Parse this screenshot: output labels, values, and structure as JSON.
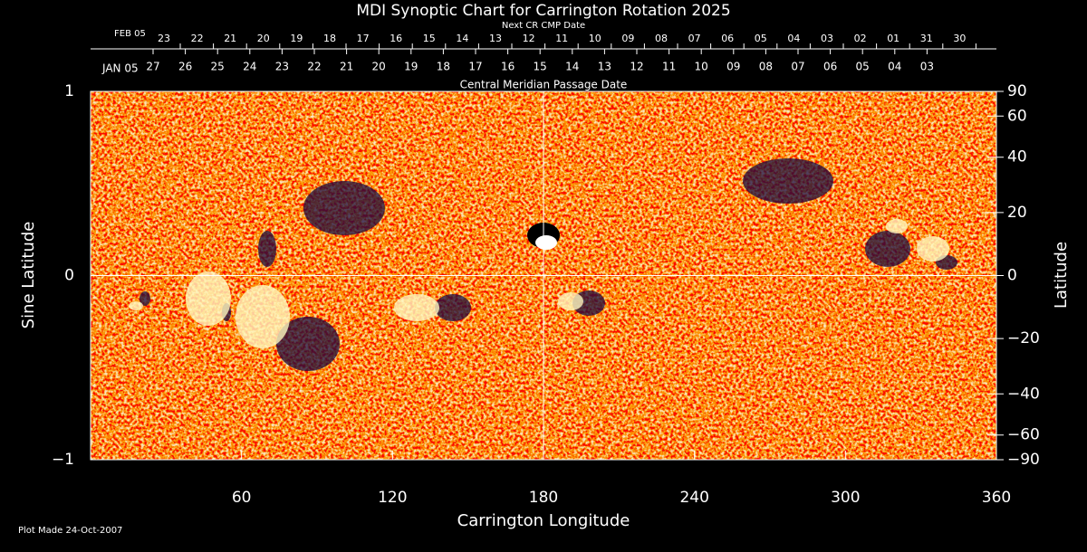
{
  "chart_data": {
    "type": "synoptic-map",
    "title": "MDI Synoptic Chart for Carrington Rotation 2025",
    "next_axis": {
      "label": "Next CR CMP Date",
      "start_label": "FEB 05",
      "color": "#ff5a3c",
      "dates": [
        "23",
        "22",
        "21",
        "20",
        "19",
        "18",
        "17",
        "16",
        "15",
        "14",
        "13",
        "12",
        "11",
        "10",
        "09",
        "08",
        "07",
        "06",
        "05",
        "04",
        "03",
        "02",
        "01",
        "31",
        "30"
      ]
    },
    "cmp_axis": {
      "label": "Central Meridian Passage Date",
      "start_label": "JAN 05",
      "color": "#ffffff",
      "dates": [
        "27",
        "26",
        "25",
        "24",
        "23",
        "22",
        "21",
        "20",
        "19",
        "18",
        "17",
        "16",
        "15",
        "14",
        "13",
        "12",
        "11",
        "10",
        "09",
        "08",
        "07",
        "06",
        "05",
        "04",
        "03"
      ]
    },
    "xlabel": "Carrington Longitude",
    "ylabel": "Sine Latitude",
    "y2label": "Latitude",
    "xlim": [
      0,
      360
    ],
    "xticks": [
      60,
      120,
      180,
      240,
      300,
      360
    ],
    "ylim": [
      -1,
      1
    ],
    "yticks": [
      {
        "value": -1,
        "label": "−1"
      },
      0,
      1
    ],
    "y2lim": [
      -90,
      90
    ],
    "y2scale": "sine",
    "y2ticks": [
      90,
      60,
      40,
      20,
      0,
      {
        "value": -20,
        "label": "−20"
      },
      {
        "value": -40,
        "label": "−40"
      },
      {
        "value": -60,
        "label": "−60"
      },
      {
        "value": -90,
        "label": "−90"
      }
    ],
    "crosshair": {
      "x": 180,
      "y": 0
    },
    "footnote": "Plot Made 24-Oct-2007"
  }
}
